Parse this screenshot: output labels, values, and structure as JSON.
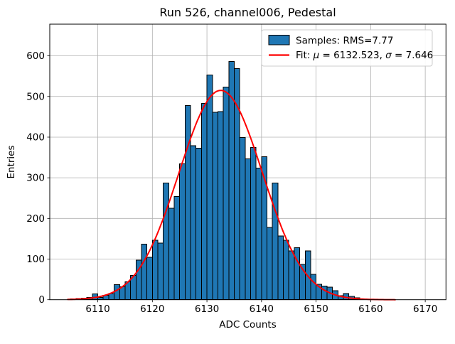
{
  "title": "Run 526, channel006, Pedestal",
  "chart_data": {
    "type": "bar",
    "subtype": "histogram",
    "title": "Run 526, channel006, Pedestal",
    "xlabel": "ADC Counts",
    "ylabel": "Entries",
    "xlim": [
      6101.2,
      6173.8
    ],
    "ylim": [
      0,
      678
    ],
    "xticks": [
      6110,
      6120,
      6130,
      6140,
      6150,
      6160,
      6170
    ],
    "yticks": [
      0,
      100,
      200,
      300,
      400,
      500,
      600
    ],
    "grid": true,
    "legend_position": "upper right",
    "colors": {
      "bar_fill": "#1f77b4",
      "bar_edge": "#000000",
      "fit_line": "#ff0000",
      "grid_line": "#b0b0b0",
      "axes_frame": "#000000",
      "legend_border": "#cccccc"
    },
    "bins": {
      "start": 6105,
      "width": 1,
      "counts": [
        2,
        3,
        4,
        6,
        14,
        6,
        11,
        15,
        37,
        32,
        44,
        60,
        97,
        137,
        104,
        146,
        139,
        287,
        225,
        254,
        334,
        478,
        379,
        373,
        483,
        553,
        461,
        463,
        523,
        586,
        569,
        399,
        347,
        375,
        324,
        352,
        178,
        287,
        157,
        146,
        120,
        128,
        87,
        120,
        62,
        38,
        34,
        31,
        22,
        10,
        15,
        8,
        5
      ]
    },
    "fit": {
      "mu": 6132.523,
      "sigma": 7.646,
      "amplitude": 515,
      "x_range": [
        6104.5,
        6164.5
      ]
    },
    "legend": [
      {
        "swatch": "patch",
        "label": "Samples: RMS=7.77",
        "parts": [
          {
            "t": "Samples: RMS=7.77",
            "i": false
          }
        ]
      },
      {
        "swatch": "line",
        "label": "Fit: μ = 6132.523, σ = 7.646",
        "parts": [
          {
            "t": "Fit: ",
            "i": false
          },
          {
            "t": "μ",
            "i": true
          },
          {
            "t": " = 6132.523, ",
            "i": false
          },
          {
            "t": "σ",
            "i": true
          },
          {
            "t": " = 7.646",
            "i": false
          }
        ]
      }
    ],
    "stats": {
      "rms": 7.77,
      "fit_mu": 6132.523,
      "fit_sigma": 7.646
    }
  }
}
